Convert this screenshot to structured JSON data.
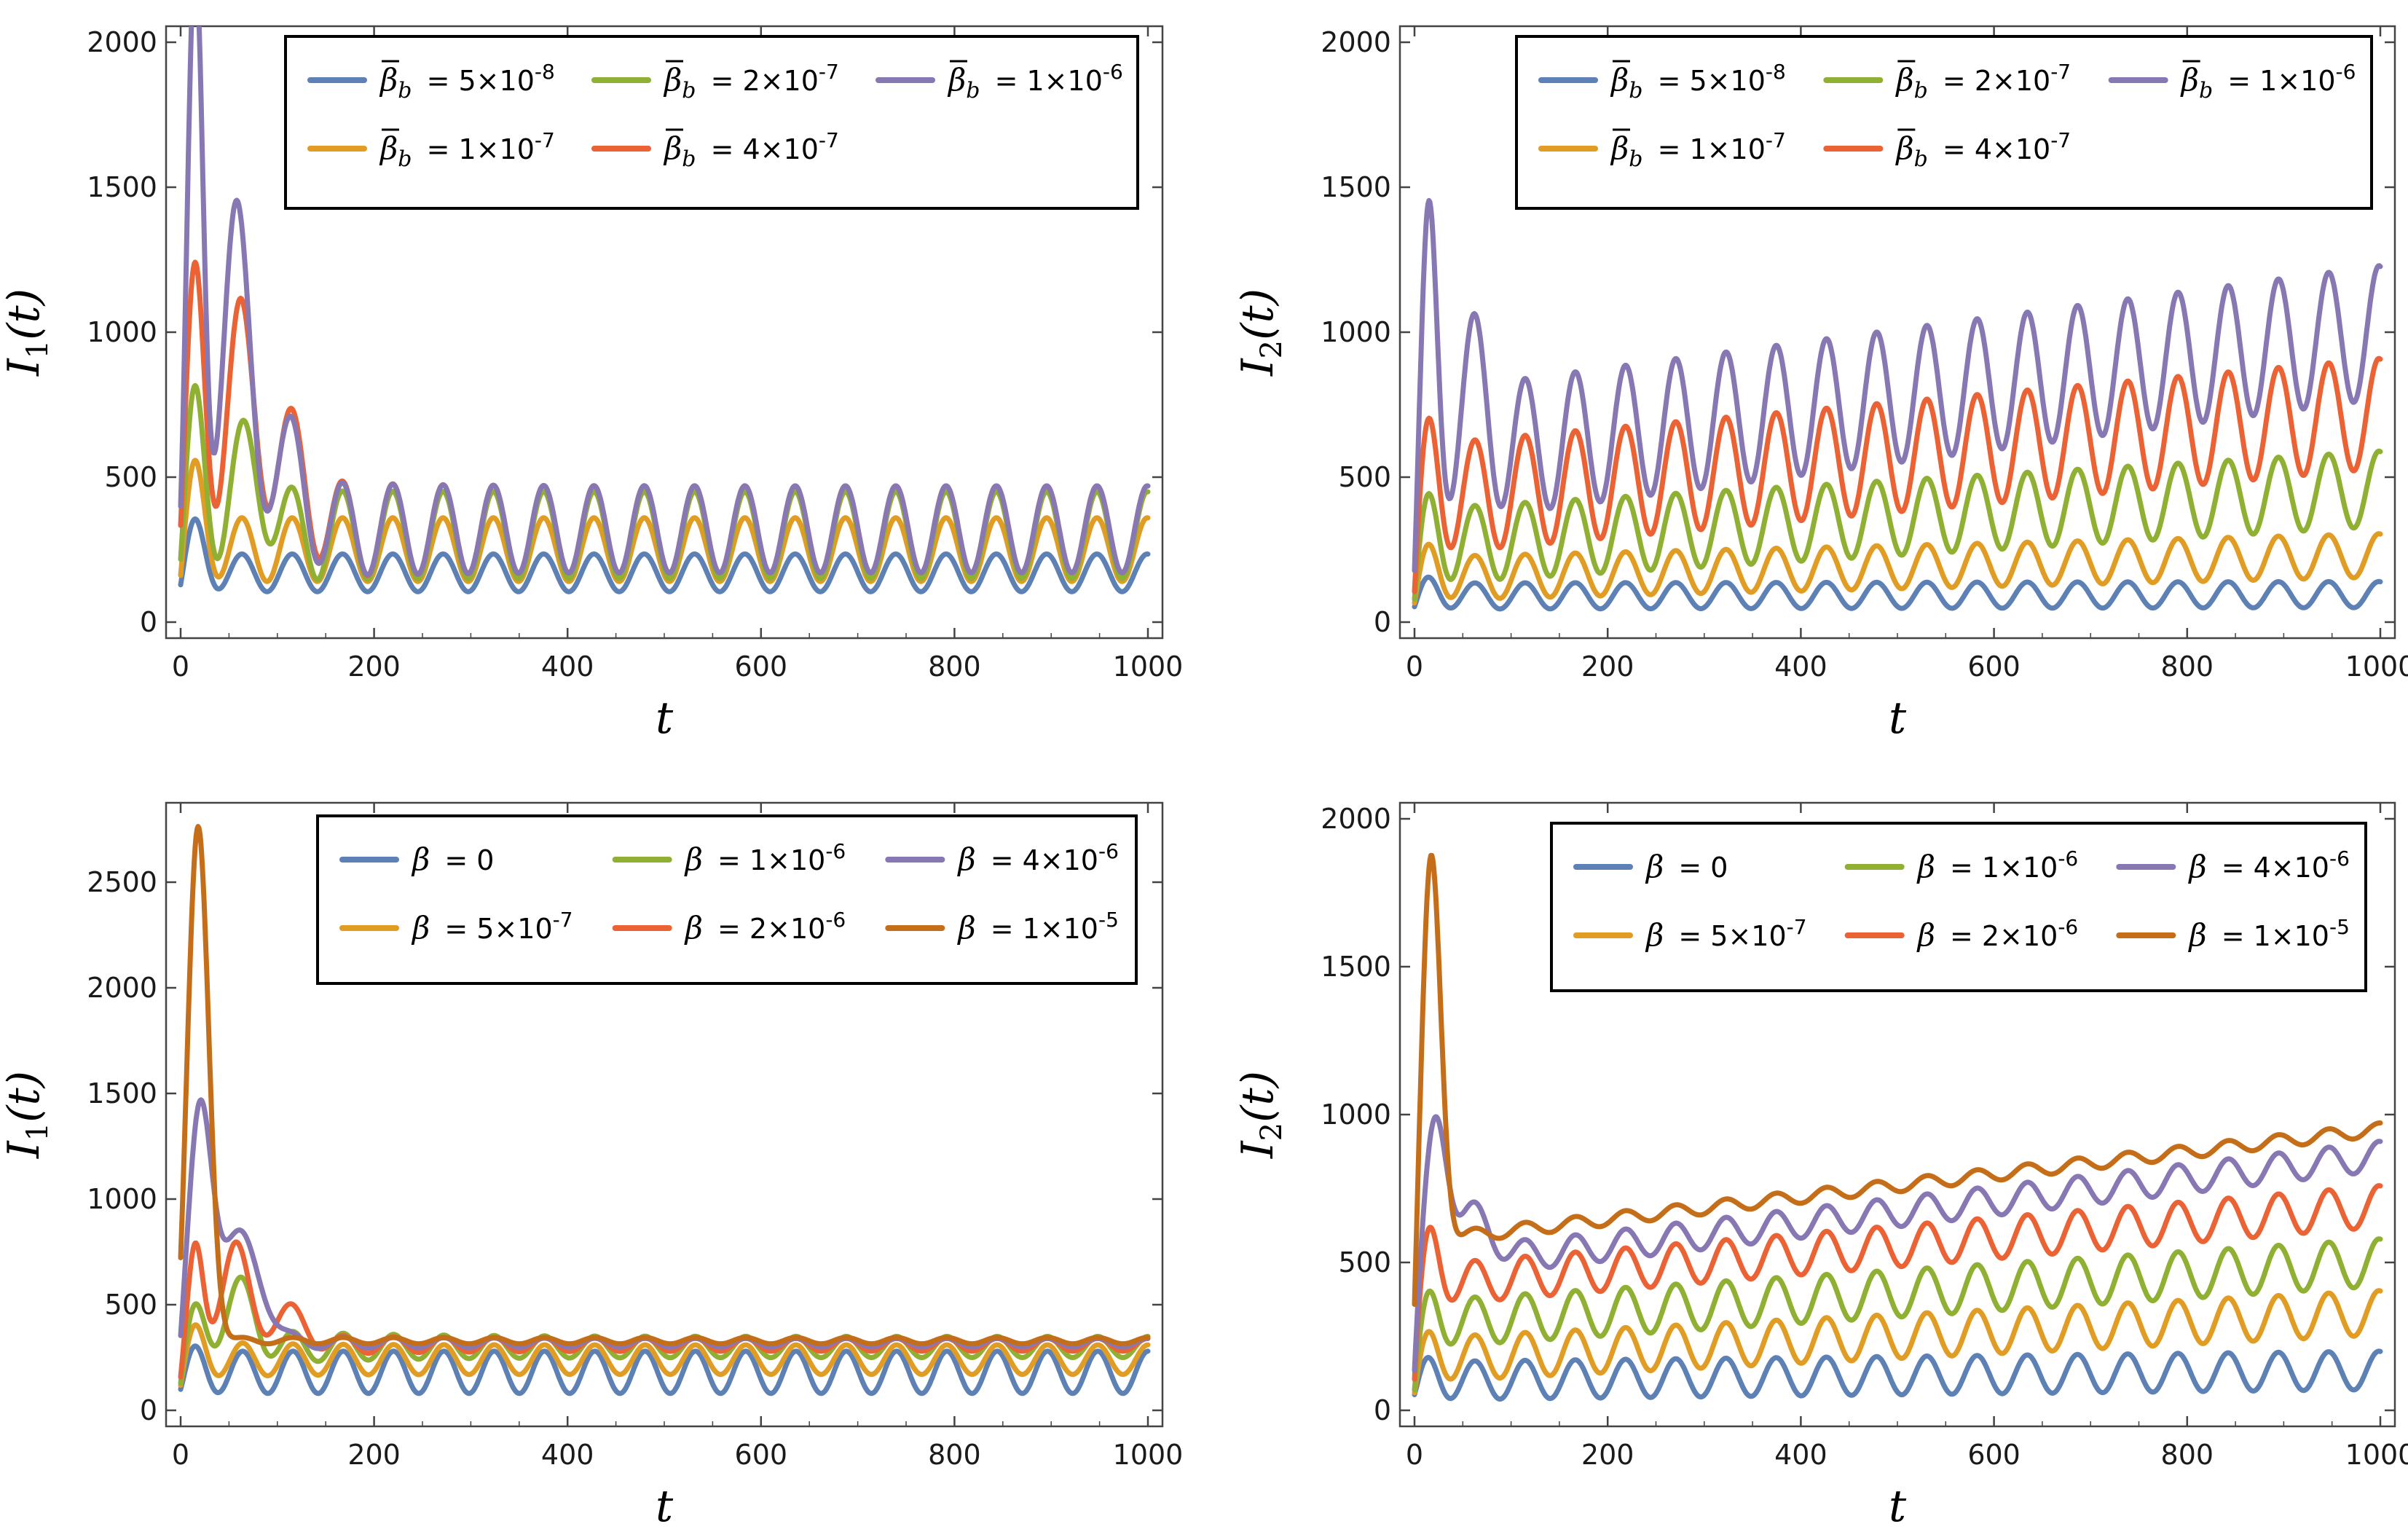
{
  "colors": {
    "blue": "#5E81B5",
    "yellow": "#E19C24",
    "green": "#8FB032",
    "red": "#EB6235",
    "purple": "#8778B3",
    "brown": "#C56E1A"
  },
  "chart_data": [
    {
      "type": "line",
      "panel": "top-left",
      "xlabel": "t",
      "ylabel_base": "I",
      "ylabel_sub": "1",
      "ylabel_tail": "(t)",
      "xlim": [
        0,
        1000
      ],
      "ylim": [
        0,
        2000
      ],
      "xticks": [
        0,
        200,
        400,
        600,
        800,
        1000
      ],
      "xtick_labels": [
        "0",
        "200",
        "400",
        "600",
        "800",
        "1000"
      ],
      "yticks": [
        0,
        500,
        1000,
        1500,
        2000
      ],
      "ytick_labels": [
        "0",
        "500",
        "1000",
        "1500",
        "2000"
      ],
      "legend_position": "top-right",
      "series": [
        {
          "name": "β̄b = 5×10⁻⁸",
          "symbol": "β",
          "overline": true,
          "sub": "b",
          "rhs": "= 5×10",
          "exp": "-8",
          "color": "blue",
          "model": {
            "y0": 80,
            "peaks": [
              [
                15,
                150,
                10
              ]
            ],
            "base": 170,
            "ramp": 0,
            "amp": 65,
            "amp_start": 65,
            "amp_tau": 1,
            "period": 52,
            "phase": 0.2
          }
        },
        {
          "name": "β̄b = 1×10⁻⁷",
          "symbol": "β",
          "overline": true,
          "sub": "b",
          "rhs": "= 1×10",
          "exp": "-7",
          "color": "yellow",
          "model": {
            "y0": 80,
            "peaks": [
              [
                15,
                250,
                10
              ]
            ],
            "base": 250,
            "ramp": 0,
            "amp": 110,
            "amp_start": 110,
            "amp_tau": 1,
            "period": 52,
            "phase": 0.2
          }
        },
        {
          "name": "β̄b = 2×10⁻⁷",
          "symbol": "β",
          "overline": true,
          "sub": "b",
          "rhs": "= 2×10",
          "exp": "-7",
          "color": "green",
          "model": {
            "y0": 80,
            "peaks": [
              [
                15,
                420,
                10
              ],
              [
                70,
                250,
                18
              ]
            ],
            "base": 300,
            "ramp": 0,
            "amp": 150,
            "amp_start": 170,
            "amp_tau": 80,
            "period": 52,
            "phase": 0.2
          }
        },
        {
          "name": "β̄b = 4×10⁻⁷",
          "symbol": "β",
          "overline": true,
          "sub": "b",
          "rhs": "= 4×10",
          "exp": "-7",
          "color": "red",
          "model": {
            "y0": 80,
            "peaks": [
              [
                15,
                780,
                10
              ],
              [
                60,
                600,
                16
              ],
              [
                110,
                250,
                20
              ]
            ],
            "base": 320,
            "ramp": 0,
            "amp": 150,
            "amp_start": 230,
            "amp_tau": 90,
            "period": 52,
            "phase": 0.2
          }
        },
        {
          "name": "β̄b = 1×10⁻⁶",
          "symbol": "β",
          "overline": true,
          "sub": "b",
          "rhs": "= 1×10",
          "exp": "-6",
          "color": "purple",
          "model": {
            "y0": 80,
            "peaks": [
              [
                15,
                1850,
                8
              ],
              [
                55,
                1000,
                14
              ],
              [
                105,
                250,
                20
              ]
            ],
            "base": 320,
            "ramp": 0,
            "amp": 150,
            "amp_start": 200,
            "amp_tau": 100,
            "period": 52,
            "phase": 0.2
          }
        }
      ]
    },
    {
      "type": "line",
      "panel": "top-right",
      "xlabel": "t",
      "ylabel_base": "I",
      "ylabel_sub": "2",
      "ylabel_tail": "(t)",
      "xlim": [
        0,
        1000
      ],
      "ylim": [
        0,
        2000
      ],
      "xticks": [
        0,
        200,
        400,
        600,
        800,
        1000
      ],
      "xtick_labels": [
        "0",
        "200",
        "400",
        "600",
        "800",
        "1000"
      ],
      "yticks": [
        0,
        500,
        1000,
        1500,
        2000
      ],
      "ytick_labels": [
        "0",
        "500",
        "1000",
        "1500",
        "2000"
      ],
      "legend_position": "top-right",
      "series": [
        {
          "name": "β̄b = 5×10⁻⁸",
          "symbol": "β",
          "overline": true,
          "sub": "b",
          "rhs": "= 5×10",
          "exp": "-8",
          "color": "blue",
          "model": {
            "y0": 40,
            "peaks": [
              [
                15,
                40,
                10
              ]
            ],
            "base": 90,
            "ramp": 5,
            "amp": 45,
            "amp_start": 45,
            "amp_tau": 1,
            "period": 52,
            "phase": 0.3
          }
        },
        {
          "name": "β̄b = 1×10⁻⁷",
          "symbol": "β",
          "overline": true,
          "sub": "b",
          "rhs": "= 1×10",
          "exp": "-7",
          "color": "yellow",
          "model": {
            "y0": 40,
            "peaks": [
              [
                15,
                80,
                10
              ]
            ],
            "base": 150,
            "ramp": 80,
            "amp": 75,
            "amp_start": 75,
            "amp_tau": 1,
            "period": 52,
            "phase": 0.3
          }
        },
        {
          "name": "β̄b = 2×10⁻⁷",
          "symbol": "β",
          "overline": true,
          "sub": "b",
          "rhs": "= 2×10",
          "exp": "-7",
          "color": "green",
          "model": {
            "y0": 40,
            "peaks": [
              [
                15,
                120,
                10
              ]
            ],
            "base": 260,
            "ramp": 200,
            "amp": 130,
            "amp_start": 130,
            "amp_tau": 1,
            "period": 52,
            "phase": 0.3
          }
        },
        {
          "name": "β̄b = 4×10⁻⁷",
          "symbol": "β",
          "overline": true,
          "sub": "b",
          "rhs": "= 4×10",
          "exp": "-7",
          "color": "red",
          "model": {
            "y0": 40,
            "peaks": [
              [
                15,
                200,
                10
              ]
            ],
            "base": 420,
            "ramp": 300,
            "amp": 190,
            "amp_start": 190,
            "amp_tau": 1,
            "period": 52,
            "phase": 0.3
          }
        },
        {
          "name": "β̄b = 1×10⁻⁶",
          "symbol": "β",
          "overline": true,
          "sub": "b",
          "rhs": "= 1×10",
          "exp": "-6",
          "color": "purple",
          "model": {
            "y0": 40,
            "peaks": [
              [
                15,
                800,
                8
              ],
              [
                60,
                250,
                14
              ]
            ],
            "base": 560,
            "ramp": 440,
            "amp": 230,
            "amp_start": 230,
            "amp_tau": 1,
            "period": 52,
            "phase": 0.3
          }
        }
      ]
    },
    {
      "type": "line",
      "panel": "bottom-left",
      "xlabel": "t",
      "ylabel_base": "I",
      "ylabel_sub": "1",
      "ylabel_tail": "(t)",
      "xlim": [
        0,
        1000
      ],
      "ylim": [
        0,
        2800
      ],
      "xticks": [
        0,
        200,
        400,
        600,
        800,
        1000
      ],
      "xtick_labels": [
        "0",
        "200",
        "400",
        "600",
        "800",
        "1000"
      ],
      "yticks": [
        0,
        500,
        1000,
        1500,
        2000,
        2500
      ],
      "ytick_labels": [
        "0",
        "500",
        "1000",
        "1500",
        "2000",
        "2500"
      ],
      "legend_position": "top-right",
      "series": [
        {
          "name": "β = 0",
          "symbol": "β",
          "overline": false,
          "sub": "",
          "rhs": "= 0",
          "exp": "",
          "color": "blue",
          "model": {
            "y0": 80,
            "peaks": [
              [
                15,
                60,
                10
              ]
            ],
            "base": 180,
            "ramp": 0,
            "amp": 100,
            "amp_start": 100,
            "amp_tau": 1,
            "period": 52,
            "phase": 0.1
          }
        },
        {
          "name": "β = 5×10⁻⁷",
          "symbol": "β",
          "overline": false,
          "sub": "",
          "rhs": "= 5×10",
          "exp": "-7",
          "color": "yellow",
          "model": {
            "y0": 80,
            "peaks": [
              [
                15,
                120,
                10
              ]
            ],
            "base": 240,
            "ramp": 0,
            "amp": 70,
            "amp_start": 90,
            "amp_tau": 80,
            "period": 52,
            "phase": 0.1
          }
        },
        {
          "name": "β = 1×10⁻⁶",
          "symbol": "β",
          "overline": false,
          "sub": "",
          "rhs": "= 1×10",
          "exp": "-6",
          "color": "green",
          "model": {
            "y0": 80,
            "peaks": [
              [
                15,
                150,
                10
              ],
              [
                60,
                250,
                16
              ]
            ],
            "base": 300,
            "ramp": 0,
            "amp": 50,
            "amp_start": 110,
            "amp_tau": 120,
            "period": 52,
            "phase": 0.1
          }
        },
        {
          "name": "β = 2×10⁻⁶",
          "symbol": "β",
          "overline": false,
          "sub": "",
          "rhs": "= 2×10",
          "exp": "-6",
          "color": "red",
          "model": {
            "y0": 80,
            "peaks": [
              [
                15,
                450,
                8
              ],
              [
                55,
                450,
                14
              ],
              [
                110,
                150,
                18
              ]
            ],
            "base": 310,
            "ramp": 0,
            "amp": 30,
            "amp_start": 80,
            "amp_tau": 120,
            "period": 52,
            "phase": 0.1
          }
        },
        {
          "name": "β = 4×10⁻⁶",
          "symbol": "β",
          "overline": false,
          "sub": "",
          "rhs": "= 4×10",
          "exp": "-6",
          "color": "purple",
          "model": {
            "y0": 80,
            "peaks": [
              [
                20,
                1050,
                12
              ],
              [
                60,
                500,
                22
              ]
            ],
            "base": 320,
            "ramp": 0,
            "amp": 20,
            "amp_start": 40,
            "amp_tau": 150,
            "period": 52,
            "phase": 0.1
          }
        },
        {
          "name": "β = 1×10⁻⁵",
          "symbol": "β",
          "overline": false,
          "sub": "",
          "rhs": "= 1×10",
          "exp": "-5",
          "color": "brown",
          "model": {
            "y0": 80,
            "peaks": [
              [
                18,
                2450,
                11
              ]
            ],
            "base": 330,
            "ramp": 0,
            "amp": 15,
            "amp_start": 15,
            "amp_tau": 1,
            "period": 52,
            "phase": 0.1
          }
        }
      ]
    },
    {
      "type": "line",
      "panel": "bottom-right",
      "xlabel": "t",
      "ylabel_base": "I",
      "ylabel_sub": "2",
      "ylabel_tail": "(t)",
      "xlim": [
        0,
        1000
      ],
      "ylim": [
        0,
        2000
      ],
      "xticks": [
        0,
        200,
        400,
        600,
        800,
        1000
      ],
      "xtick_labels": [
        "0",
        "200",
        "400",
        "600",
        "800",
        "1000"
      ],
      "yticks": [
        0,
        500,
        1000,
        1500,
        2000
      ],
      "ytick_labels": [
        "0",
        "500",
        "1000",
        "1500",
        "2000"
      ],
      "legend_position": "top-right",
      "series": [
        {
          "name": "β = 0",
          "symbol": "β",
          "overline": false,
          "sub": "",
          "rhs": "= 0",
          "exp": "",
          "color": "blue",
          "model": {
            "y0": 40,
            "peaks": [
              [
                15,
                40,
                10
              ]
            ],
            "base": 100,
            "ramp": 35,
            "amp": 65,
            "amp_start": 65,
            "amp_tau": 1,
            "period": 52,
            "phase": 0.3
          }
        },
        {
          "name": "β = 5×10⁻⁷",
          "symbol": "β",
          "overline": false,
          "sub": "",
          "rhs": "= 5×10",
          "exp": "-7",
          "color": "yellow",
          "model": {
            "y0": 40,
            "peaks": [
              [
                15,
                60,
                10
              ]
            ],
            "base": 170,
            "ramp": 160,
            "amp": 75,
            "amp_start": 75,
            "amp_tau": 1,
            "period": 52,
            "phase": 0.3
          }
        },
        {
          "name": "β = 1×10⁻⁶",
          "symbol": "β",
          "overline": false,
          "sub": "",
          "rhs": "= 1×10",
          "exp": "-6",
          "color": "green",
          "model": {
            "y0": 40,
            "peaks": [
              [
                15,
                90,
                10
              ]
            ],
            "base": 290,
            "ramp": 210,
            "amp": 80,
            "amp_start": 80,
            "amp_tau": 1,
            "period": 52,
            "phase": 0.3
          }
        },
        {
          "name": "β = 2×10⁻⁶",
          "symbol": "β",
          "overline": false,
          "sub": "",
          "rhs": "= 2×10",
          "exp": "-6",
          "color": "red",
          "model": {
            "y0": 40,
            "peaks": [
              [
                15,
                200,
                10
              ]
            ],
            "base": 420,
            "ramp": 270,
            "amp": 70,
            "amp_start": 70,
            "amp_tau": 1,
            "period": 52,
            "phase": 0.3
          }
        },
        {
          "name": "β = 4×10⁻⁶",
          "symbol": "β",
          "overline": false,
          "sub": "",
          "rhs": "= 4×10",
          "exp": "-6",
          "color": "purple",
          "model": {
            "y0": 40,
            "peaks": [
              [
                22,
                500,
                12
              ],
              [
                60,
                150,
                20
              ]
            ],
            "base": 480,
            "ramp": 380,
            "amp": 50,
            "amp_start": 50,
            "amp_tau": 1,
            "period": 52,
            "phase": 0.3
          }
        },
        {
          "name": "β = 1×10⁻⁵",
          "symbol": "β",
          "overline": false,
          "sub": "",
          "rhs": "= 1×10",
          "exp": "-5",
          "color": "brown",
          "model": {
            "y0": 40,
            "peaks": [
              [
                17,
                1350,
                10
              ]
            ],
            "base": 570,
            "ramp": 380,
            "amp": 22,
            "amp_start": 22,
            "amp_tau": 1,
            "period": 52,
            "phase": 0.3
          }
        }
      ]
    }
  ]
}
